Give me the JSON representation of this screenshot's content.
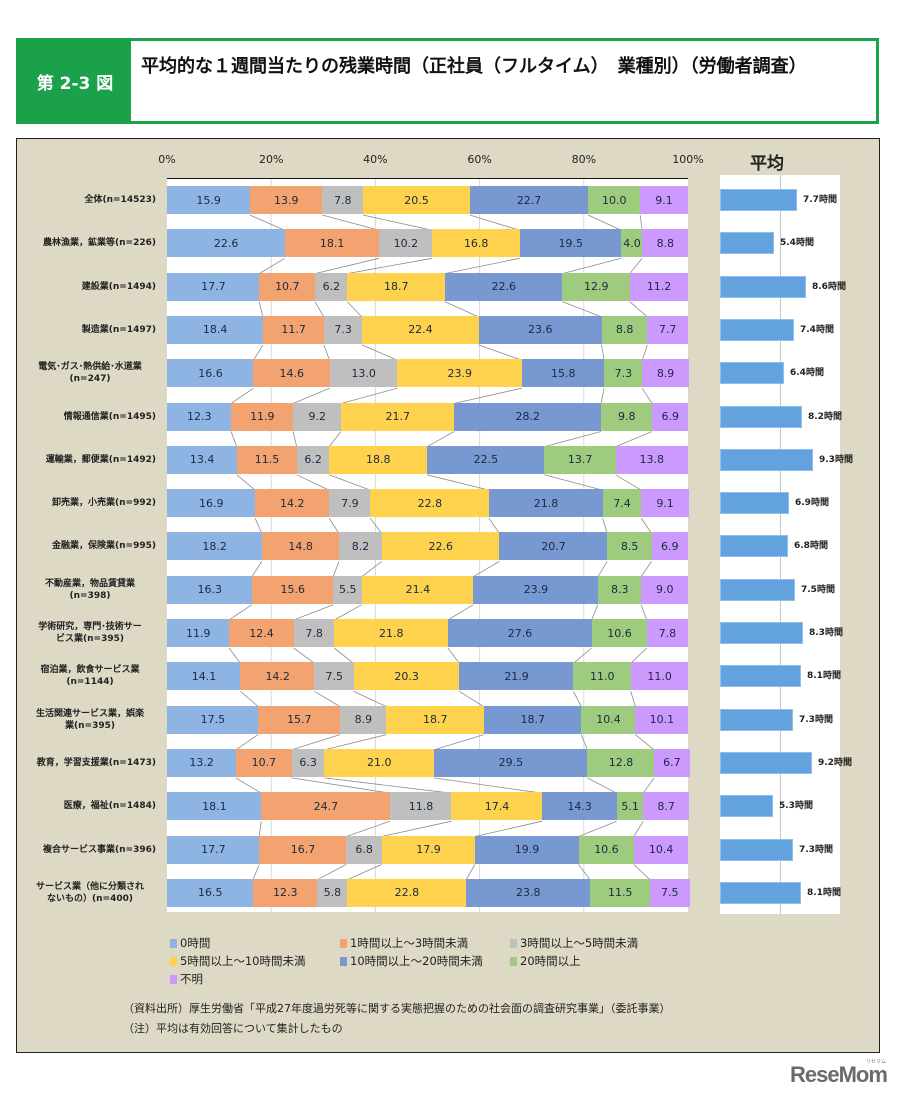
{
  "header": {
    "figure_tag": "第 2-3 図",
    "title": "平均的な１週間当たりの残業時間（正社員（フルタイム）　業種別）（労働者調査）"
  },
  "chart_data": [
    {
      "type": "bar",
      "orientation": "horizontal",
      "stacked": "percent",
      "title": "平均的な１週間当たりの残業時間（正社員（フルタイム）　業種別）（労働者調査）",
      "xlabel": "",
      "ylabel": "",
      "xlim": [
        0,
        100
      ],
      "x_ticks": [
        "0%",
        "20%",
        "40%",
        "60%",
        "80%",
        "100%"
      ],
      "grid": true,
      "legend_position": "bottom",
      "categories": [
        "全体(n=14523)",
        "農林漁業，鉱業等(n=226)",
        "建設業(n=1494)",
        "製造業(n=1497)",
        "電気･ガス･熱供給･水道業(n=247)",
        "情報通信業(n=1495)",
        "運輸業，郵便業(n=1492)",
        "卸売業，小売業(n=992)",
        "金融業，保険業(n=995)",
        "不動産業，物品賃貸業(n=398)",
        "学術研究，専門･技術サービス業(n=395)",
        "宿泊業，飲食サービス業(n=1144)",
        "生活関連サービス業，娯楽業(n=395)",
        "教育，学習支援業(n=1473)",
        "医療，福祉(n=1484)",
        "複合サービス事業(n=396)",
        "サービス業（他に分類されないもの）(n=400)"
      ],
      "series": [
        {
          "name": "0時間",
          "color": "#8db4e2",
          "values": [
            15.9,
            22.6,
            17.7,
            18.4,
            16.6,
            12.3,
            13.4,
            16.9,
            18.2,
            16.3,
            11.9,
            14.1,
            17.5,
            13.2,
            18.1,
            17.7,
            16.5
          ]
        },
        {
          "name": "1時間以上～3時間未満",
          "color": "#f2a36f",
          "values": [
            13.9,
            18.1,
            10.7,
            11.7,
            14.6,
            11.9,
            11.5,
            14.2,
            14.8,
            15.6,
            12.4,
            14.2,
            15.7,
            10.7,
            24.7,
            16.7,
            12.3
          ]
        },
        {
          "name": "3時間以上～5時間未満",
          "color": "#bfbfbf",
          "values": [
            7.8,
            10.2,
            6.2,
            7.3,
            13.0,
            9.2,
            6.2,
            7.9,
            8.2,
            5.5,
            7.8,
            7.5,
            8.9,
            6.3,
            11.8,
            6.8,
            5.8
          ]
        },
        {
          "name": "5時間以上～10時間未満",
          "color": "#ffd24d",
          "values": [
            20.5,
            16.8,
            18.7,
            22.4,
            23.9,
            21.7,
            18.8,
            22.8,
            22.6,
            21.4,
            21.8,
            20.3,
            18.7,
            21.0,
            17.4,
            17.9,
            22.8
          ]
        },
        {
          "name": "10時間以上～20時間未満",
          "color": "#7898d2",
          "values": [
            22.7,
            19.5,
            22.6,
            23.6,
            15.8,
            28.2,
            22.5,
            21.8,
            20.7,
            23.9,
            27.6,
            21.9,
            18.7,
            29.5,
            14.3,
            19.9,
            23.8
          ]
        },
        {
          "name": "20時間以上",
          "color": "#9fcb7f",
          "values": [
            10.0,
            4.0,
            12.9,
            8.8,
            7.3,
            9.8,
            13.7,
            7.4,
            8.5,
            8.3,
            10.6,
            11.0,
            10.4,
            12.8,
            5.1,
            10.6,
            11.5
          ]
        },
        {
          "name": "不明",
          "color": "#cc99ff",
          "values": [
            9.1,
            8.8,
            11.2,
            7.7,
            8.9,
            6.9,
            13.8,
            9.1,
            6.9,
            9.0,
            7.8,
            11.0,
            10.1,
            6.7,
            8.7,
            10.4,
            7.5
          ]
        }
      ]
    },
    {
      "type": "bar",
      "orientation": "horizontal",
      "title": "平均",
      "unit": "時間",
      "color": "#62a2de",
      "categories": [
        "全体(n=14523)",
        "農林漁業，鉱業等(n=226)",
        "建設業(n=1494)",
        "製造業(n=1497)",
        "電気･ガス･熱供給･水道業(n=247)",
        "情報通信業(n=1495)",
        "運輸業，郵便業(n=1492)",
        "卸売業，小売業(n=992)",
        "金融業，保険業(n=995)",
        "不動産業，物品賃貸業(n=398)",
        "学術研究，専門･技術サービス業(n=395)",
        "宿泊業，飲食サービス業(n=1144)",
        "生活関連サービス業，娯楽業(n=395)",
        "教育，学習支援業(n=1473)",
        "医療，福祉(n=1484)",
        "複合サービス事業(n=396)",
        "サービス業（他に分類されないもの）(n=400)"
      ],
      "values": [
        7.7,
        5.4,
        8.6,
        7.4,
        6.4,
        8.2,
        9.3,
        6.9,
        6.8,
        7.5,
        8.3,
        8.1,
        7.3,
        9.2,
        5.3,
        7.3,
        8.1
      ],
      "labels": [
        "7.7時間",
        "5.4時間",
        "8.6時間",
        "7.4時間",
        "6.4時間",
        "8.2時間",
        "9.3時間",
        "6.9時間",
        "6.8時間",
        "7.5時間",
        "8.3時間",
        "8.1時間",
        "7.3時間",
        "9.2時間",
        "5.3時間",
        "7.3時間",
        "8.1時間"
      ]
    }
  ],
  "row_labels": [
    [
      "全体(n=14523)"
    ],
    [
      "農林漁業，鉱業等(n=226)"
    ],
    [
      "建設業(n=1494)"
    ],
    [
      "製造業(n=1497)"
    ],
    [
      "電気･ガス･熱供給･水道業",
      "(n=247)"
    ],
    [
      "情報通信業(n=1495)"
    ],
    [
      "運輸業，郵便業(n=1492)"
    ],
    [
      "卸売業，小売業(n=992)"
    ],
    [
      "金融業，保険業(n=995)"
    ],
    [
      "不動産業，物品賃貸業",
      "(n=398)"
    ],
    [
      "学術研究，専門･技術サー",
      "ビス業(n=395)"
    ],
    [
      "宿泊業，飲食サービス業",
      "(n=1144)"
    ],
    [
      "生活関連サービス業，娯楽",
      "業(n=395)"
    ],
    [
      "教育，学習支援業(n=1473)"
    ],
    [
      "医療，福祉(n=1484)"
    ],
    [
      "複合サービス事業(n=396)"
    ],
    [
      "サービス業（他に分類され",
      "ないもの）(n=400)"
    ]
  ],
  "axis": {
    "ticks": [
      "0%",
      "20%",
      "40%",
      "60%",
      "80%",
      "100%"
    ],
    "avg_title": "平均"
  },
  "legend": [
    {
      "label": "0時間",
      "color": "#8db4e2"
    },
    {
      "label": "1時間以上～3時間未満",
      "color": "#f2a36f"
    },
    {
      "label": "3時間以上～5時間未満",
      "color": "#bfbfbf"
    },
    {
      "label": "5時間以上～10時間未満",
      "color": "#ffd24d"
    },
    {
      "label": "10時間以上～20時間未満",
      "color": "#7898d2"
    },
    {
      "label": "20時間以上",
      "color": "#9fcb7f"
    },
    {
      "label": "不明",
      "color": "#cc99ff"
    }
  ],
  "notes": {
    "source": "（資料出所）厚生労働省「平成27年度過労死等に関する実態把握のための社会面の調査研究事業」（委託事業）",
    "note": "（注）平均は有効回答について集計したもの"
  },
  "watermark": {
    "logo": "ReseMom",
    "logo_sub": "リセマム"
  }
}
